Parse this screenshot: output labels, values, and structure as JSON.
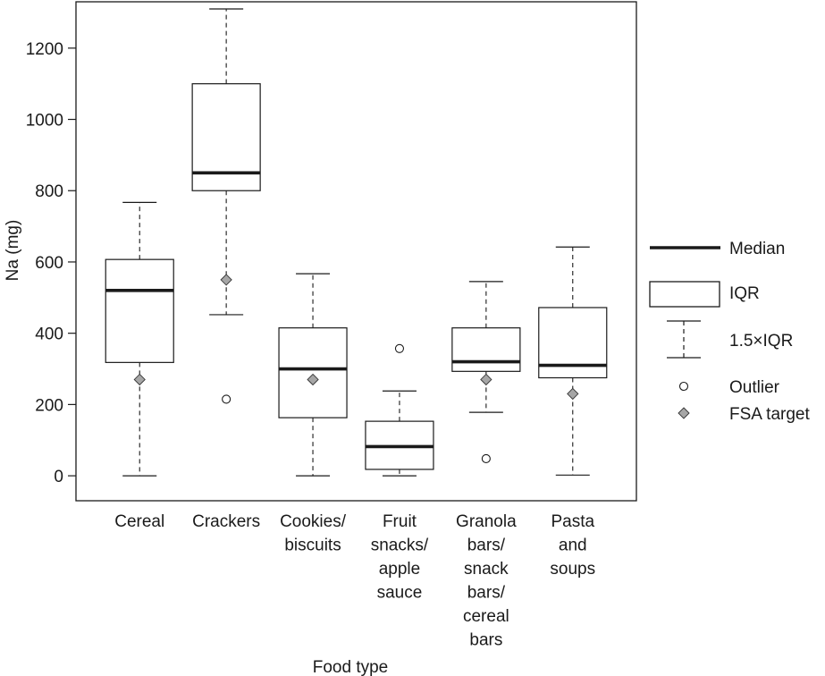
{
  "chart_data": {
    "type": "box",
    "xlabel": "Food type",
    "ylabel": "Na (mg)",
    "ylim": [
      -70,
      1330
    ],
    "yticks": [
      0,
      200,
      400,
      600,
      800,
      1000,
      1200
    ],
    "grid": false,
    "legend_position": "right",
    "legend": {
      "median": "Median",
      "iqr": "IQR",
      "whisker": "1.5×IQR",
      "outlier": "Outlier",
      "target": "FSA target"
    },
    "categories": [
      {
        "label": [
          "Cereal"
        ],
        "whisker_low": 0,
        "q1": 318,
        "median": 520,
        "q3": 607,
        "whisker_high": 767,
        "outliers": [],
        "fsa_target": 270
      },
      {
        "label": [
          "Crackers"
        ],
        "whisker_low": 452,
        "q1": 800,
        "median": 850,
        "q3": 1100,
        "whisker_high": 1310,
        "outliers": [
          215
        ],
        "fsa_target": 550
      },
      {
        "label": [
          "Cookies/",
          "biscuits"
        ],
        "whisker_low": 0,
        "q1": 163,
        "median": 300,
        "q3": 415,
        "whisker_high": 567,
        "outliers": [],
        "fsa_target": 270
      },
      {
        "label": [
          "Fruit",
          "snacks/",
          "apple",
          "sauce"
        ],
        "whisker_low": 0,
        "q1": 18,
        "median": 82,
        "q3": 153,
        "whisker_high": 238,
        "outliers": [
          357
        ],
        "fsa_target": null
      },
      {
        "label": [
          "Granola",
          "bars/",
          "snack",
          "bars/",
          "cereal",
          "bars"
        ],
        "whisker_low": 178,
        "q1": 293,
        "median": 320,
        "q3": 415,
        "whisker_high": 545,
        "outliers": [
          48
        ],
        "fsa_target": 270
      },
      {
        "label": [
          "Pasta",
          "and",
          "soups"
        ],
        "whisker_low": 2,
        "q1": 275,
        "median": 310,
        "q3": 472,
        "whisker_high": 642,
        "outliers": [],
        "fsa_target": 230
      }
    ]
  }
}
